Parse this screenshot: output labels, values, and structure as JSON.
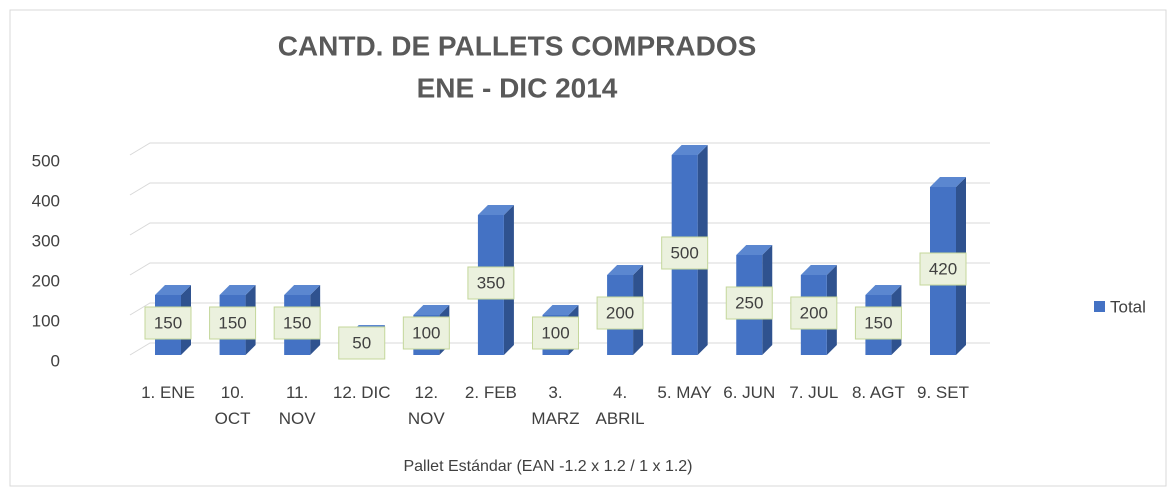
{
  "chart_data": {
    "type": "bar3d",
    "title": [
      "CANTD. DE PALLETS COMPRADOS",
      "ENE - DIC 2014"
    ],
    "x_label": "Pallet Estándar (EAN -1.2 x 1.2 / 1 x 1.2)",
    "categories": [
      "1. ENE",
      "10. OCT",
      "11. NOV",
      "12. DIC",
      "12. NOV",
      "2. FEB",
      "3. MARZ",
      "4. ABRIL",
      "5. MAY",
      "6. JUN",
      "7. JUL",
      "8. AGT",
      "9. SET"
    ],
    "series": [
      {
        "name": "Total",
        "color": "#4472c4",
        "values": [
          150,
          150,
          150,
          50,
          100,
          350,
          100,
          200,
          500,
          250,
          200,
          150,
          420
        ]
      }
    ],
    "ylim": [
      0,
      500
    ],
    "yticks": [
      0,
      100,
      200,
      300,
      400,
      500
    ],
    "grid": true,
    "legend": "right",
    "data_labels": true
  }
}
